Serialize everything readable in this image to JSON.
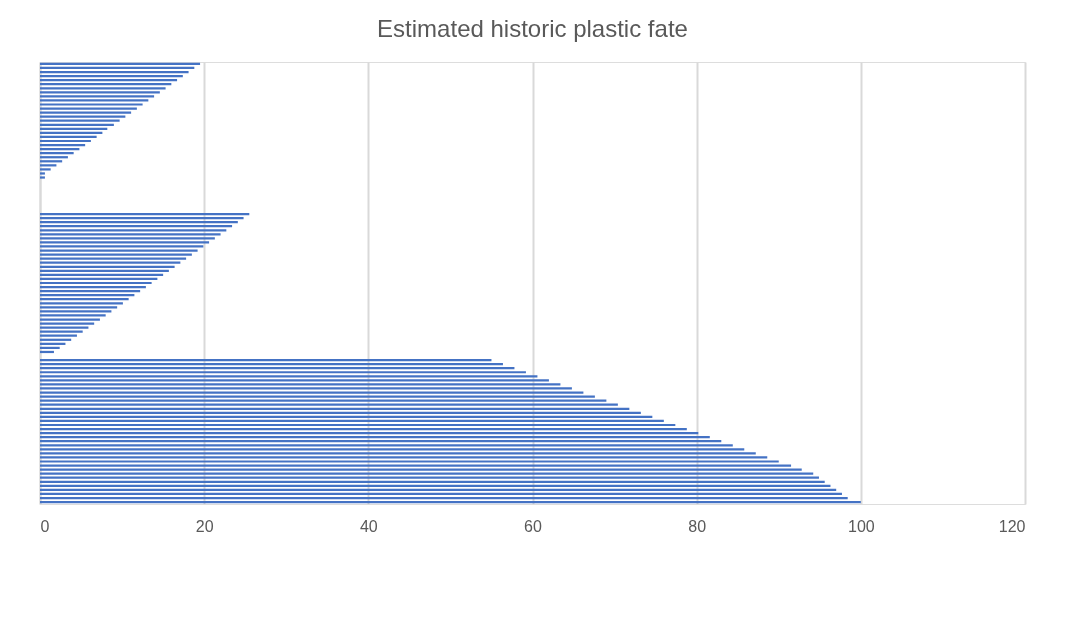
{
  "chart_data": {
    "type": "bar",
    "orientation": "horizontal",
    "title": "Estimated historic plastic fate",
    "categories": [
      null,
      null,
      null,
      null,
      null,
      null,
      null,
      null,
      null,
      null,
      null,
      null,
      null,
      null,
      null,
      null,
      null,
      null,
      null,
      null,
      null,
      null,
      null,
      null,
      null,
      null,
      null,
      null,
      null,
      null,
      null,
      null,
      null,
      null,
      null,
      null,
      null,
      null,
      null,
      null,
      null,
      null,
      null,
      null,
      null,
      null,
      null,
      null,
      null,
      null,
      null,
      null,
      null,
      null,
      null,
      null,
      null,
      null,
      null,
      null,
      null,
      null,
      null,
      null,
      null,
      null,
      null,
      null,
      null,
      null,
      null,
      null,
      null,
      null,
      null,
      null,
      null,
      null,
      null,
      null,
      null,
      null,
      null,
      null,
      null,
      null,
      null,
      null,
      null,
      null,
      null,
      null,
      null,
      null,
      null,
      null,
      null,
      null,
      null,
      null,
      null,
      null,
      null,
      null,
      null,
      null,
      null,
      null,
      null
    ],
    "values": [
      19.5,
      18.8,
      18.1,
      17.4,
      16.7,
      16.0,
      15.3,
      14.6,
      13.9,
      13.2,
      12.5,
      11.8,
      11.1,
      10.4,
      9.7,
      9.0,
      8.2,
      7.6,
      6.9,
      6.2,
      5.5,
      4.8,
      4.1,
      3.4,
      2.7,
      2.0,
      1.3,
      0.6,
      0.6,
      null,
      null,
      null,
      null,
      null,
      null,
      null,
      null,
      25.5,
      24.8,
      24.1,
      23.4,
      22.7,
      22.0,
      21.3,
      20.6,
      19.9,
      19.2,
      18.5,
      17.8,
      17.1,
      16.4,
      15.7,
      15.0,
      14.3,
      13.6,
      12.9,
      12.2,
      11.5,
      10.8,
      10.1,
      9.4,
      8.7,
      8.0,
      7.3,
      6.6,
      5.9,
      5.2,
      4.5,
      3.8,
      3.1,
      2.4,
      1.7,
      null,
      55.0,
      56.4,
      57.8,
      59.2,
      60.6,
      62.0,
      63.4,
      64.8,
      66.2,
      67.6,
      69.0,
      70.4,
      71.8,
      73.2,
      74.6,
      76.0,
      77.4,
      78.8,
      80.2,
      81.6,
      83.0,
      84.4,
      85.8,
      87.2,
      88.6,
      90.0,
      91.5,
      92.8,
      94.2,
      94.9,
      95.6,
      96.3,
      97.0,
      97.7,
      98.4,
      100.0
    ],
    "color": "#4472c4",
    "xlim": [
      0,
      120
    ],
    "xticks": [
      0,
      20,
      40,
      60,
      80,
      100,
      120
    ],
    "grid": "x",
    "tick_labels": "x"
  }
}
